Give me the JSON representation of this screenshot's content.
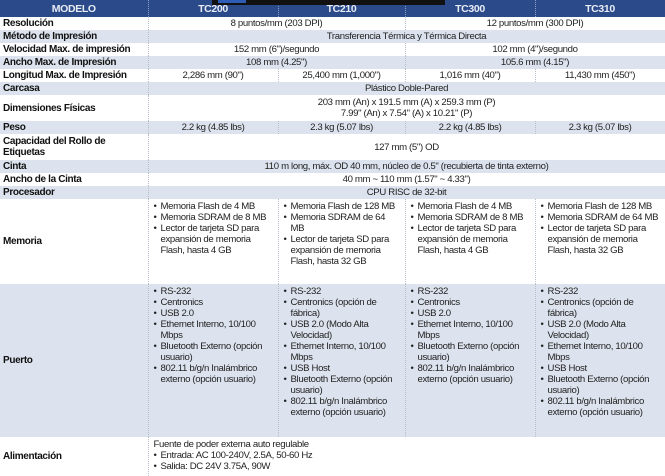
{
  "header": {
    "model": "MODELO",
    "models": [
      "TC200",
      "TC210",
      "TC300",
      "TC310"
    ]
  },
  "rows": {
    "resolucion": {
      "label": "Resolución",
      "a": "8 puntos/mm (203 DPI)",
      "b": "12 puntos/mm (300 DPI)"
    },
    "metodo": {
      "label": "Método de Impresión",
      "all": "Transferencia Térmica y Térmica Directa"
    },
    "velocidad": {
      "label": "Velocidad Max. de impresión",
      "a": "152 mm (6\")/segundo",
      "b": "102 mm (4\")/segundo"
    },
    "ancho": {
      "label": "Ancho Max. de Impresión",
      "a": "108 mm (4.25\")",
      "b": "105.6 mm (4.15\")"
    },
    "longitud": {
      "label": "Longitud Max. de Impresión",
      "values": [
        "2,286 mm (90\")",
        "25,400 mm (1,000\")",
        "1,016 mm (40\")",
        "11,430 mm (450\")"
      ]
    },
    "carcasa": {
      "label": "Carcasa",
      "all": "Plástico Doble-Pared"
    },
    "dimensiones": {
      "label": "Dimensiones Físicas",
      "line1": "203 mm (An) x 191.5 mm (A) x 259.3 mm (P)",
      "line2": "7.99\" (An) x 7.54\" (A) x 10.21\" (P)"
    },
    "peso": {
      "label": "Peso",
      "values": [
        "2.2 kg (4.85 lbs)",
        "2.3 kg (5.07 lbs)",
        "2.2 kg (4.85 lbs)",
        "2.3 kg (5.07 lbs)"
      ]
    },
    "capacidad": {
      "label": "Capacidad del Rollo de Etiquetas",
      "all": "127 mm (5\") OD"
    },
    "cinta": {
      "label": "Cinta",
      "all": "110 m long, máx. OD 40 mm, núcleo de 0.5\" (recubierta de tinta externo)"
    },
    "ancho_cinta": {
      "label": "Ancho de la Cinta",
      "all": "40 mm ~ 110 mm (1.57\" ~ 4.33\")"
    },
    "procesador": {
      "label": "Procesador",
      "all": "CPU RISC de 32-bit"
    },
    "memoria": {
      "label": "Memoria",
      "values": [
        [
          "Memoria Flash de 4 MB",
          "Memoria SDRAM de 8 MB",
          "Lector de tarjeta SD para expansión de memoria Flash, hasta 4 GB"
        ],
        [
          "Memoria Flash de 128 MB",
          "Memoria SDRAM de 64 MB",
          "Lector de tarjeta SD para expansión de memoria Flash, hasta 32 GB"
        ],
        [
          "Memoria Flash de 4 MB",
          "Memoria SDRAM de 8 MB",
          "Lector de tarjeta SD para expansión de memoria Flash, hasta 4 GB"
        ],
        [
          "Memoria Flash de 128 MB",
          "Memoria SDRAM de 64 MB",
          "Lector de tarjeta SD para expansión de memoria Flash, hasta 32 GB"
        ]
      ]
    },
    "puerto": {
      "label": "Puerto",
      "values": [
        [
          "RS-232",
          "Centronics",
          "USB 2.0",
          "Ethernet Interno, 10/100 Mbps",
          "Bluetooth Externo (opción usuario)",
          "802.11 b/g/n Inalámbrico externo (opción usuario)"
        ],
        [
          "RS-232",
          "Centronics (opción de fábrica)",
          "USB 2.0 (Modo Alta Velocidad)",
          "Ethernet Interno, 10/100 Mbps",
          "USB Host",
          "Bluetooth Externo (opción usuario)",
          "802.11 b/g/n Inalámbrico externo (opción usuario)"
        ],
        [
          "RS-232",
          "Centronics",
          "USB 2.0",
          "Ethernet Interno, 10/100 Mbps",
          "Bluetooth Externo (opción usuario)",
          "802.11 b/g/n Inalámbrico externo (opción usuario)"
        ],
        [
          "RS-232",
          "Centronics (opción de fábrica)",
          "USB 2.0 (Modo Alta Velocidad)",
          "Ethernet Interno, 10/100 Mbps",
          "USB Host",
          "Bluetooth Externo (opción usuario)",
          "802.11 b/g/n Inalámbrico externo (opción usuario)"
        ]
      ]
    },
    "alimentacion": {
      "label": "Alimentación",
      "intro": "Fuente de poder externa auto regulable",
      "items": [
        "Entrada: AC 100-240V, 2.5A, 50-60 Hz",
        "Salida: DC 24V 3.75A, 90W"
      ]
    }
  },
  "colors": {
    "header_bg": "#2b4a8a",
    "row_shade": "#dde3ee"
  }
}
